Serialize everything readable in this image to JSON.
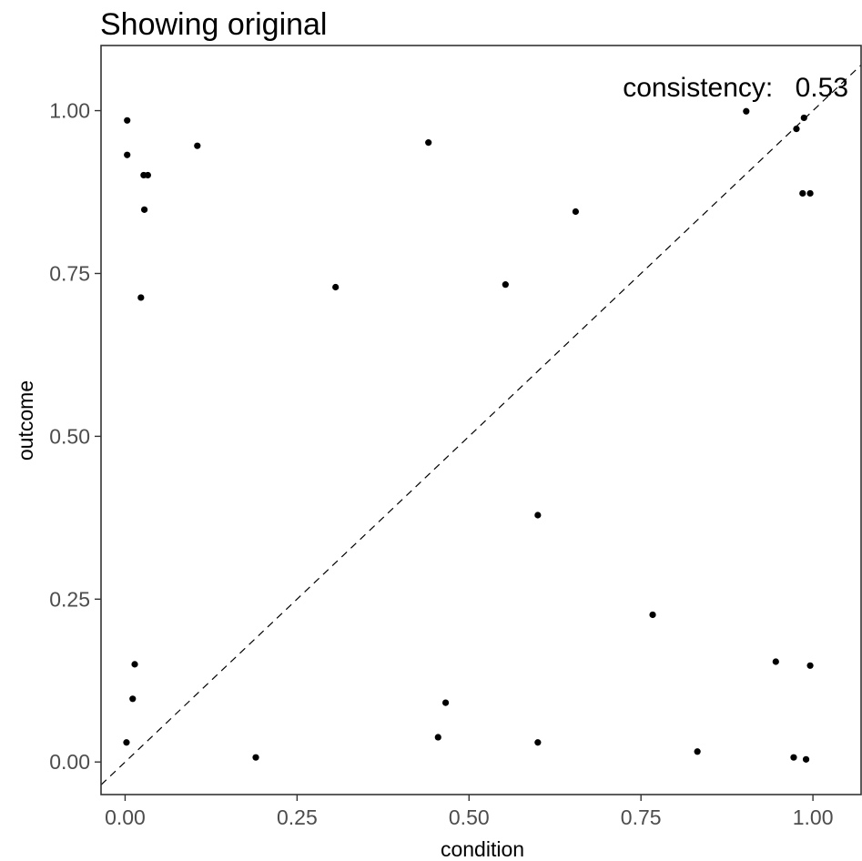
{
  "chart_data": {
    "type": "scatter",
    "title": "Showing original",
    "xlabel": "condition",
    "ylabel": "outcome",
    "xlim": [
      -0.035,
      1.07
    ],
    "ylim": [
      -0.05,
      1.1
    ],
    "x_ticks": [
      "0.00",
      "0.25",
      "0.50",
      "0.75",
      "1.00"
    ],
    "y_ticks": [
      "0.00",
      "0.25",
      "0.50",
      "0.75",
      "1.00"
    ],
    "grid": false,
    "reference_line": "y = x (dashed)",
    "annotation": {
      "label": "consistency:",
      "value": "0.53"
    },
    "points": [
      {
        "x": 0.003,
        "y": 0.985
      },
      {
        "x": 0.003,
        "y": 0.932
      },
      {
        "x": 0.027,
        "y": 0.901
      },
      {
        "x": 0.033,
        "y": 0.901
      },
      {
        "x": 0.028,
        "y": 0.848
      },
      {
        "x": 0.023,
        "y": 0.713
      },
      {
        "x": 0.105,
        "y": 0.946
      },
      {
        "x": 0.306,
        "y": 0.729
      },
      {
        "x": 0.441,
        "y": 0.951
      },
      {
        "x": 0.553,
        "y": 0.733
      },
      {
        "x": 0.655,
        "y": 0.845
      },
      {
        "x": 0.903,
        "y": 0.999
      },
      {
        "x": 0.976,
        "y": 0.972
      },
      {
        "x": 0.987,
        "y": 0.989
      },
      {
        "x": 0.985,
        "y": 0.873
      },
      {
        "x": 0.996,
        "y": 0.873
      },
      {
        "x": 0.6,
        "y": 0.379
      },
      {
        "x": 0.767,
        "y": 0.226
      },
      {
        "x": 0.014,
        "y": 0.15
      },
      {
        "x": 0.011,
        "y": 0.097
      },
      {
        "x": 0.002,
        "y": 0.03
      },
      {
        "x": 0.19,
        "y": 0.007
      },
      {
        "x": 0.466,
        "y": 0.091
      },
      {
        "x": 0.455,
        "y": 0.038
      },
      {
        "x": 0.6,
        "y": 0.03
      },
      {
        "x": 0.832,
        "y": 0.016
      },
      {
        "x": 0.946,
        "y": 0.154
      },
      {
        "x": 0.996,
        "y": 0.148
      },
      {
        "x": 0.972,
        "y": 0.007
      },
      {
        "x": 0.99,
        "y": 0.004
      }
    ]
  }
}
